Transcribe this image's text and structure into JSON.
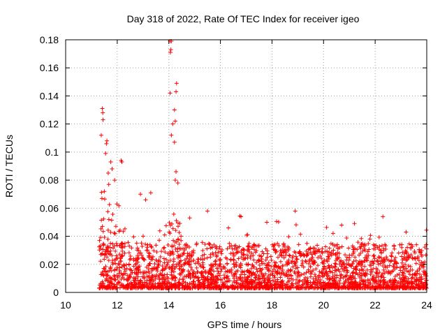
{
  "chart_data": {
    "type": "scatter",
    "title": "Day 318 of 2022, Rate Of TEC Index for receiver igeo",
    "xlabel": "GPS time / hours",
    "ylabel": "ROTI / TECUs",
    "xlim": [
      10,
      24
    ],
    "ylim": [
      0,
      0.18
    ],
    "xticks": [
      10,
      12,
      14,
      16,
      18,
      20,
      22,
      24
    ],
    "yticks": [
      0,
      0.02,
      0.04,
      0.06,
      0.08,
      0.1,
      0.12,
      0.14,
      0.16,
      0.18
    ],
    "xtick_labels": [
      "10",
      "12",
      "14",
      "16",
      "18",
      "20",
      "22",
      "24"
    ],
    "ytick_labels": [
      "0",
      "0.02",
      "0.04",
      "0.06",
      "0.08",
      "0.1",
      "0.12",
      "0.14",
      "0.16",
      "0.18"
    ],
    "grid": true,
    "marker": "+",
    "marker_color": "#ff0000",
    "series": [
      {
        "name": "ROTI",
        "x_range": [
          11.3,
          24.0
        ],
        "description_points": [
          {
            "x": 11.42,
            "y": 0.131
          },
          {
            "x": 11.44,
            "y": 0.128
          },
          {
            "x": 11.45,
            "y": 0.123
          },
          {
            "x": 11.38,
            "y": 0.112
          },
          {
            "x": 11.6,
            "y": 0.108
          },
          {
            "x": 11.58,
            "y": 0.106
          },
          {
            "x": 11.55,
            "y": 0.099
          },
          {
            "x": 11.75,
            "y": 0.093
          },
          {
            "x": 11.8,
            "y": 0.088
          },
          {
            "x": 11.65,
            "y": 0.085
          },
          {
            "x": 12.15,
            "y": 0.094
          },
          {
            "x": 12.18,
            "y": 0.093
          },
          {
            "x": 11.9,
            "y": 0.08
          },
          {
            "x": 11.5,
            "y": 0.072
          },
          {
            "x": 12.9,
            "y": 0.07
          },
          {
            "x": 13.3,
            "y": 0.071
          },
          {
            "x": 13.1,
            "y": 0.066
          },
          {
            "x": 14.05,
            "y": 0.179
          },
          {
            "x": 14.1,
            "y": 0.179
          },
          {
            "x": 14.08,
            "y": 0.173
          },
          {
            "x": 14.06,
            "y": 0.171
          },
          {
            "x": 14.3,
            "y": 0.149
          },
          {
            "x": 14.28,
            "y": 0.143
          },
          {
            "x": 14.05,
            "y": 0.142
          },
          {
            "x": 14.22,
            "y": 0.13
          },
          {
            "x": 14.25,
            "y": 0.122
          },
          {
            "x": 14.15,
            "y": 0.12
          },
          {
            "x": 14.1,
            "y": 0.112
          },
          {
            "x": 14.22,
            "y": 0.107
          },
          {
            "x": 14.28,
            "y": 0.086
          },
          {
            "x": 14.25,
            "y": 0.08
          },
          {
            "x": 14.35,
            "y": 0.078
          },
          {
            "x": 15.5,
            "y": 0.058
          },
          {
            "x": 18.9,
            "y": 0.058
          },
          {
            "x": 22.3,
            "y": 0.054
          },
          {
            "x": 16.8,
            "y": 0.054
          },
          {
            "x": 20.7,
            "y": 0.048
          },
          {
            "x": 17.8,
            "y": 0.05
          },
          {
            "x": 23.2,
            "y": 0.043
          },
          {
            "x": 24.0,
            "y": 0.031
          }
        ],
        "typical_range": [
          0.003,
          0.035
        ]
      }
    ]
  }
}
